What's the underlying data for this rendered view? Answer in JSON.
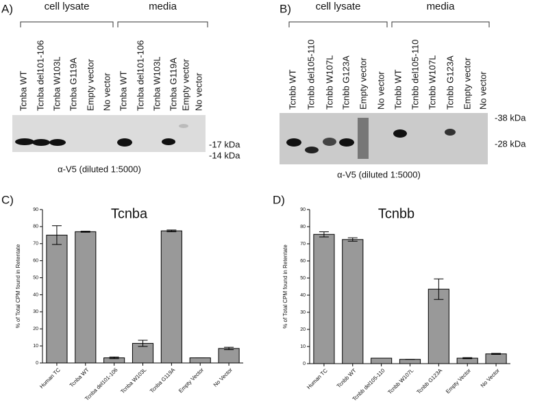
{
  "blots": [
    {
      "panel_label": "A)",
      "groups": [
        "cell lysate",
        "media"
      ],
      "lanes": [
        "Tcnba WT",
        "Tcnba del101-106",
        "Tcnba W103L",
        "Tcnba G119A",
        "Empty vector",
        "No vector",
        "Tcnba WT",
        "Tcnba del101-106",
        "Tcnba W103L",
        "Tcnba G119A",
        "Empty vector",
        "No vector"
      ],
      "markers": [
        "-17 kDa",
        "-14 kDa"
      ],
      "caption": "α-V5 (diluted 1:5000)"
    },
    {
      "panel_label": "B)",
      "groups": [
        "cell lysate",
        "media"
      ],
      "lanes": [
        "Tcnbb WT",
        "Tcnbb del105-110",
        "Tcnbb W107L",
        "Tcnbb G123A",
        "Empty vector",
        "No vector",
        "Tcnbb WT",
        "Tcnbb del105-110",
        "Tcnbb W107L",
        "Tcnbb G123A",
        "Empty vector",
        "No vector"
      ],
      "markers": [
        "-38 kDa",
        "-28 kDa"
      ],
      "caption": "α-V5 (diluted 1:5000)"
    }
  ],
  "chart_data": [
    {
      "type": "bar",
      "panel_label": "C)",
      "title": "Tcnba",
      "ylabel": "% of Total CPM found in Retentate",
      "categories": [
        "Human TC",
        "Tcnba WT",
        "Tcnba del101-106",
        "Tcnba W103L",
        "Tcnba G119A",
        "Empty Vector",
        "No Vector"
      ],
      "values": [
        75,
        77,
        3,
        11.5,
        77.5,
        3,
        8.5
      ],
      "errors": [
        5.5,
        0.3,
        0.5,
        1.8,
        0.5,
        0,
        0.7
      ],
      "color": "#999999",
      "ylim": [
        0,
        90
      ],
      "yticks": [
        0,
        10,
        20,
        30,
        40,
        50,
        60,
        70,
        80,
        90
      ]
    },
    {
      "type": "bar",
      "panel_label": "D)",
      "title": "Tcnbb",
      "ylabel": "% of Total CPM found in Retentate",
      "categories": [
        "Human TC",
        "Tcnbb WT",
        "Tcnbb del105-110",
        "Tcnbb W107L",
        "Tcnbb G123A",
        "Empty Vector",
        "No Vector"
      ],
      "values": [
        75.5,
        72.5,
        3.2,
        2.5,
        43.5,
        3.2,
        5.7
      ],
      "errors": [
        1.5,
        1,
        0,
        0,
        6,
        0.3,
        0.3
      ],
      "color": "#999999",
      "ylim": [
        0,
        90
      ],
      "yticks": [
        0,
        10,
        20,
        30,
        40,
        50,
        60,
        70,
        80,
        90
      ]
    }
  ]
}
